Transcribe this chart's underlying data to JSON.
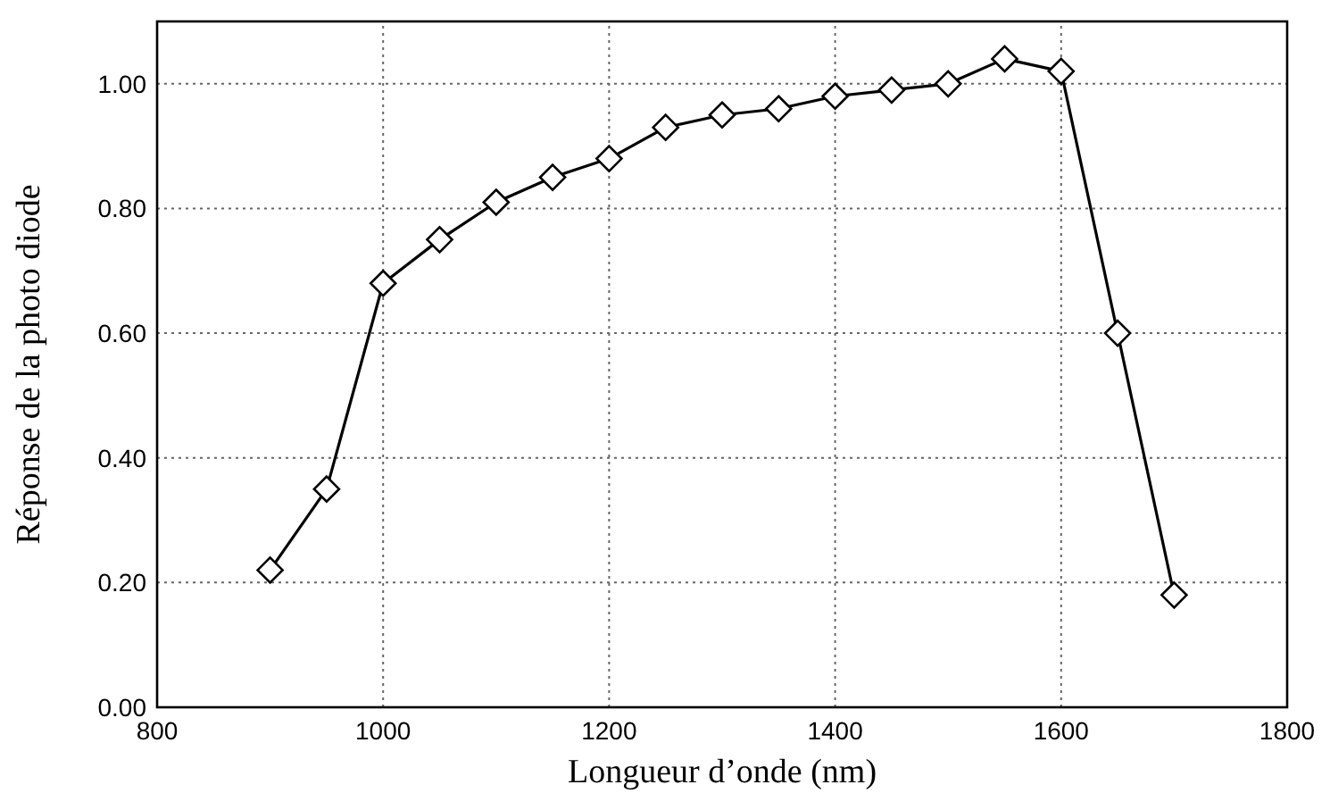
{
  "chart_data": {
    "type": "line",
    "xlabel": "Longueur d’onde (nm)",
    "ylabel": "Réponse de la photo diode",
    "xlim": [
      800,
      1800
    ],
    "xticks": [
      800,
      1000,
      1200,
      1400,
      1600,
      1800
    ],
    "ylim": [
      0,
      1.1
    ],
    "yticks": [
      {
        "value": 0,
        "label": "0.00"
      },
      {
        "value": 0.2,
        "label": "0.20"
      },
      {
        "value": 0.4,
        "label": "0.40"
      },
      {
        "value": 0.6,
        "label": "0.60"
      },
      {
        "value": 0.8,
        "label": "0.80"
      },
      {
        "value": 1,
        "label": "1.00"
      }
    ],
    "grid": true,
    "marker": "diamond",
    "line_style": "solid",
    "series": [
      {
        "color": "#000000",
        "x": [
          900,
          950,
          1000,
          1050,
          1100,
          1150,
          1200,
          1250,
          1300,
          1350,
          1400,
          1450,
          1500,
          1550,
          1600,
          1650,
          1700
        ],
        "values": [
          0.22,
          0.35,
          0.68,
          0.75,
          0.81,
          0.85,
          0.88,
          0.93,
          0.95,
          0.96,
          0.98,
          0.99,
          1.0,
          1.04,
          1.02,
          0.6,
          0.18
        ]
      }
    ]
  }
}
